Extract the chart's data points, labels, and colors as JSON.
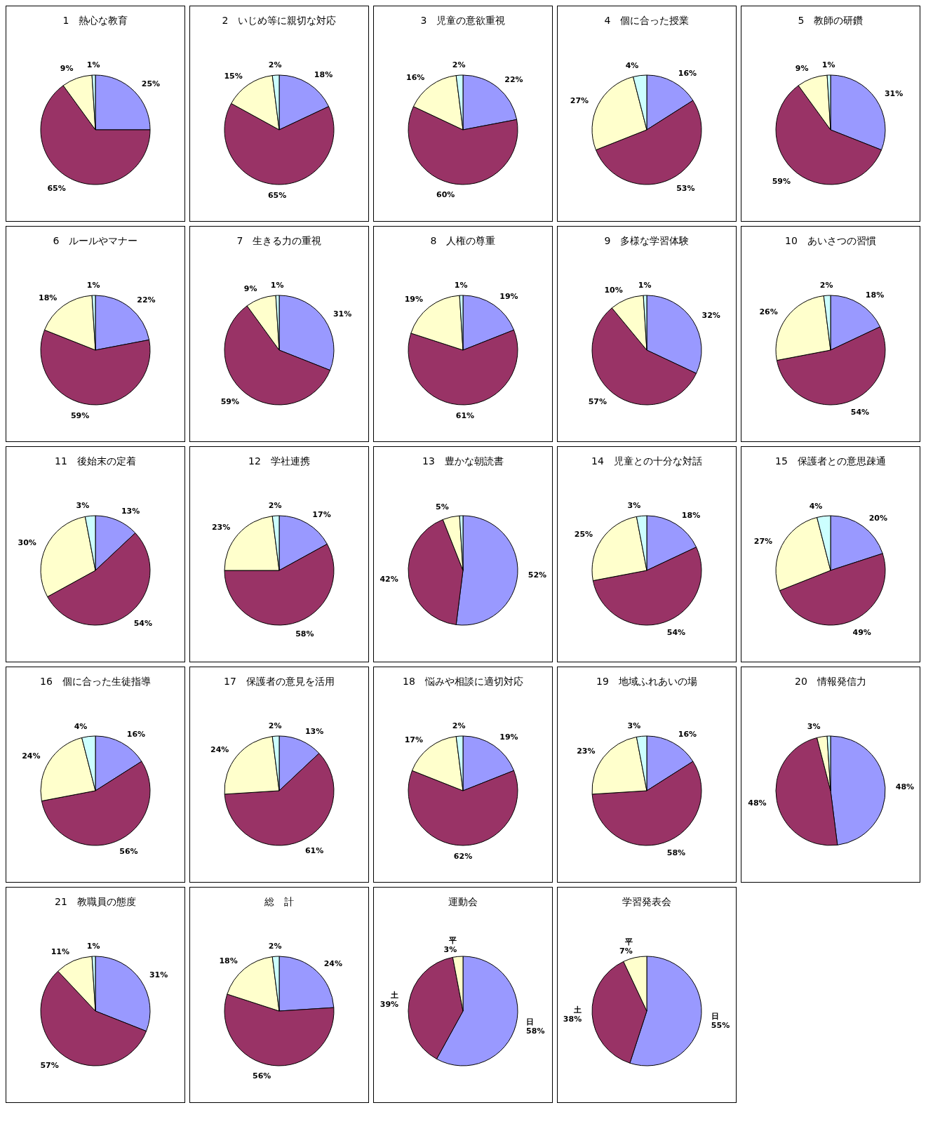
{
  "chart_data": [
    {
      "type": "pie",
      "title": "1　熱心な教育",
      "categories": [
        null,
        null,
        null,
        null
      ],
      "values": [
        25,
        65,
        9,
        1
      ],
      "colors": [
        "#9999ff",
        "#993366",
        "#ffffcc",
        "#ccffff"
      ],
      "value_labels": [
        "25%",
        "65%",
        "9%",
        "1%"
      ]
    },
    {
      "type": "pie",
      "title": "2　いじめ等に親切な対応",
      "categories": [
        null,
        null,
        null,
        null
      ],
      "values": [
        18,
        65,
        15,
        2
      ],
      "colors": [
        "#9999ff",
        "#993366",
        "#ffffcc",
        "#ccffff"
      ],
      "value_labels": [
        "18%",
        "65%",
        "15%",
        "2%"
      ]
    },
    {
      "type": "pie",
      "title": "3　児童の意欲重視",
      "categories": [
        null,
        null,
        null,
        null
      ],
      "values": [
        22,
        60,
        16,
        2
      ],
      "colors": [
        "#9999ff",
        "#993366",
        "#ffffcc",
        "#ccffff"
      ],
      "value_labels": [
        "22%",
        "60%",
        "16%",
        "2%"
      ]
    },
    {
      "type": "pie",
      "title": "4　個に合った授業",
      "categories": [
        null,
        null,
        null,
        null
      ],
      "values": [
        16,
        53,
        27,
        4
      ],
      "colors": [
        "#9999ff",
        "#993366",
        "#ffffcc",
        "#ccffff"
      ],
      "value_labels": [
        "16%",
        "53%",
        "27%",
        "4%"
      ]
    },
    {
      "type": "pie",
      "title": "5　教師の研鑽",
      "categories": [
        null,
        null,
        null,
        null
      ],
      "values": [
        31,
        59,
        9,
        1
      ],
      "colors": [
        "#9999ff",
        "#993366",
        "#ffffcc",
        "#ccffff"
      ],
      "value_labels": [
        "31%",
        "59%",
        "9%",
        "1%"
      ]
    },
    {
      "type": "pie",
      "title": "6　ルールやマナー",
      "categories": [
        null,
        null,
        null,
        null
      ],
      "values": [
        22,
        59,
        18,
        1
      ],
      "colors": [
        "#9999ff",
        "#993366",
        "#ffffcc",
        "#ccffff"
      ],
      "value_labels": [
        "22%",
        "59%",
        "18%",
        "1%"
      ]
    },
    {
      "type": "pie",
      "title": "7　生きる力の重視",
      "categories": [
        null,
        null,
        null,
        null
      ],
      "values": [
        31,
        59,
        9,
        1
      ],
      "colors": [
        "#9999ff",
        "#993366",
        "#ffffcc",
        "#ccffff"
      ],
      "value_labels": [
        "31%",
        "59%",
        "9%",
        "1%"
      ]
    },
    {
      "type": "pie",
      "title": "8　人権の尊重",
      "categories": [
        null,
        null,
        null,
        null
      ],
      "values": [
        19,
        61,
        19,
        1
      ],
      "colors": [
        "#9999ff",
        "#993366",
        "#ffffcc",
        "#ccffff"
      ],
      "value_labels": [
        "19%",
        "61%",
        "19%",
        "1%"
      ]
    },
    {
      "type": "pie",
      "title": "9　多様な学習体験",
      "categories": [
        null,
        null,
        null,
        null
      ],
      "values": [
        32,
        57,
        10,
        1
      ],
      "colors": [
        "#9999ff",
        "#993366",
        "#ffffcc",
        "#ccffff"
      ],
      "value_labels": [
        "32%",
        "57%",
        "10%",
        "1%"
      ]
    },
    {
      "type": "pie",
      "title": "10　あいさつの習慣",
      "categories": [
        null,
        null,
        null,
        null
      ],
      "values": [
        18,
        54,
        26,
        2
      ],
      "colors": [
        "#9999ff",
        "#993366",
        "#ffffcc",
        "#ccffff"
      ],
      "value_labels": [
        "18%",
        "54%",
        "26%",
        "2%"
      ]
    },
    {
      "type": "pie",
      "title": "11　後始末の定着",
      "categories": [
        null,
        null,
        null,
        null
      ],
      "values": [
        13,
        54,
        30,
        3
      ],
      "colors": [
        "#9999ff",
        "#993366",
        "#ffffcc",
        "#ccffff"
      ],
      "value_labels": [
        "13%",
        "54%",
        "30%",
        "3%"
      ]
    },
    {
      "type": "pie",
      "title": "12　学社連携",
      "categories": [
        null,
        null,
        null,
        null
      ],
      "values": [
        17,
        58,
        23,
        2
      ],
      "colors": [
        "#9999ff",
        "#993366",
        "#ffffcc",
        "#ccffff"
      ],
      "value_labels": [
        "17%",
        "58%",
        "23%",
        "2%"
      ]
    },
    {
      "type": "pie",
      "title": "13　豊かな朝読書",
      "categories": [
        null,
        null,
        null,
        null
      ],
      "values": [
        52,
        42,
        5,
        1
      ],
      "colors": [
        "#9999ff",
        "#993366",
        "#ffffcc",
        "#ccffff"
      ],
      "value_labels": [
        "52%",
        "42%",
        "5%",
        null
      ]
    },
    {
      "type": "pie",
      "title": "14　児童との十分な対話",
      "categories": [
        null,
        null,
        null,
        null
      ],
      "values": [
        18,
        54,
        25,
        3
      ],
      "colors": [
        "#9999ff",
        "#993366",
        "#ffffcc",
        "#ccffff"
      ],
      "value_labels": [
        "18%",
        "54%",
        "25%",
        "3%"
      ]
    },
    {
      "type": "pie",
      "title": "15　保護者との意思疎通",
      "categories": [
        null,
        null,
        null,
        null
      ],
      "values": [
        20,
        49,
        27,
        4
      ],
      "colors": [
        "#9999ff",
        "#993366",
        "#ffffcc",
        "#ccffff"
      ],
      "value_labels": [
        "20%",
        "49%",
        "27%",
        "4%"
      ]
    },
    {
      "type": "pie",
      "title": "16　個に合った生徒指導",
      "categories": [
        null,
        null,
        null,
        null
      ],
      "values": [
        16,
        56,
        24,
        4
      ],
      "colors": [
        "#9999ff",
        "#993366",
        "#ffffcc",
        "#ccffff"
      ],
      "value_labels": [
        "16%",
        "56%",
        "24%",
        "4%"
      ]
    },
    {
      "type": "pie",
      "title": "17　保護者の意見を活用",
      "categories": [
        null,
        null,
        null,
        null
      ],
      "values": [
        13,
        61,
        24,
        2
      ],
      "colors": [
        "#9999ff",
        "#993366",
        "#ffffcc",
        "#ccffff"
      ],
      "value_labels": [
        "13%",
        "61%",
        "24%",
        "2%"
      ]
    },
    {
      "type": "pie",
      "title": "18　悩みや相談に適切対応",
      "categories": [
        null,
        null,
        null,
        null
      ],
      "values": [
        19,
        62,
        17,
        2
      ],
      "colors": [
        "#9999ff",
        "#993366",
        "#ffffcc",
        "#ccffff"
      ],
      "value_labels": [
        "19%",
        "62%",
        "17%",
        "2%"
      ]
    },
    {
      "type": "pie",
      "title": "19　地域ふれあいの場",
      "categories": [
        null,
        null,
        null,
        null
      ],
      "values": [
        16,
        58,
        23,
        3
      ],
      "colors": [
        "#9999ff",
        "#993366",
        "#ffffcc",
        "#ccffff"
      ],
      "value_labels": [
        "16%",
        "58%",
        "23%",
        "3%"
      ]
    },
    {
      "type": "pie",
      "title": "20　情報発信力",
      "categories": [
        null,
        null,
        null,
        null
      ],
      "values": [
        48,
        48,
        3,
        1
      ],
      "colors": [
        "#9999ff",
        "#993366",
        "#ffffcc",
        "#ccffff"
      ],
      "value_labels": [
        "48%",
        "48%",
        "3%",
        null
      ]
    },
    {
      "type": "pie",
      "title": "21　教職員の態度",
      "categories": [
        null,
        null,
        null,
        null
      ],
      "values": [
        31,
        57,
        11,
        1
      ],
      "colors": [
        "#9999ff",
        "#993366",
        "#ffffcc",
        "#ccffff"
      ],
      "value_labels": [
        "31%",
        "57%",
        "11%",
        "1%"
      ]
    },
    {
      "type": "pie",
      "title": "総　計",
      "categories": [
        null,
        null,
        null,
        null
      ],
      "values": [
        24,
        56,
        18,
        2
      ],
      "colors": [
        "#9999ff",
        "#993366",
        "#ffffcc",
        "#ccffff"
      ],
      "value_labels": [
        "24%",
        "56%",
        "18%",
        "2%"
      ]
    },
    {
      "type": "pie",
      "title": "運動会",
      "categories": [
        "日",
        "土",
        "平"
      ],
      "values": [
        58,
        39,
        3
      ],
      "colors": [
        "#9999ff",
        "#993366",
        "#ffffcc"
      ],
      "value_labels": [
        "58%",
        "39%",
        "3%"
      ]
    },
    {
      "type": "pie",
      "title": "学習発表会",
      "categories": [
        "日",
        "土",
        "平"
      ],
      "values": [
        55,
        38,
        7
      ],
      "colors": [
        "#9999ff",
        "#993366",
        "#ffffcc"
      ],
      "value_labels": [
        "55%",
        "38%",
        "7%"
      ]
    }
  ]
}
